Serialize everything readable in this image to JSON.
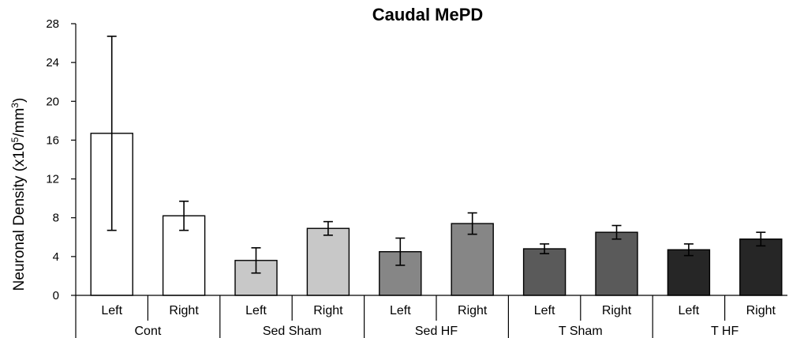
{
  "chart_data": {
    "type": "bar",
    "title": "Caudal MePD",
    "ylabel_main": "Neuronal Density (x10",
    "ylabel_sup1": "5",
    "ylabel_mid": "/mm",
    "ylabel_sup2": "3",
    "ylabel_end": ")",
    "xlabel": "",
    "ylim": [
      0,
      28
    ],
    "yticks": [
      "0",
      "4",
      "8",
      "12",
      "16",
      "20",
      "24",
      "28"
    ],
    "grid": false,
    "categories": [
      "Left",
      "Right",
      "Left",
      "Right",
      "Left",
      "Right",
      "Left",
      "Right",
      "Left",
      "Right"
    ],
    "groups": [
      "Cont",
      "Sed Sham",
      "Sed HF",
      "T Sham",
      "T HF"
    ],
    "values": [
      16.7,
      8.2,
      3.6,
      6.9,
      4.5,
      7.4,
      4.8,
      6.5,
      4.7,
      5.8
    ],
    "errors": [
      10.0,
      1.5,
      1.3,
      0.7,
      1.4,
      1.1,
      0.5,
      0.7,
      0.6,
      0.7
    ],
    "bar_colors": [
      "#ffffff",
      "#ffffff",
      "#c8c8c8",
      "#c8c8c8",
      "#868686",
      "#868686",
      "#5a5a5a",
      "#5a5a5a",
      "#262626",
      "#262626"
    ]
  }
}
